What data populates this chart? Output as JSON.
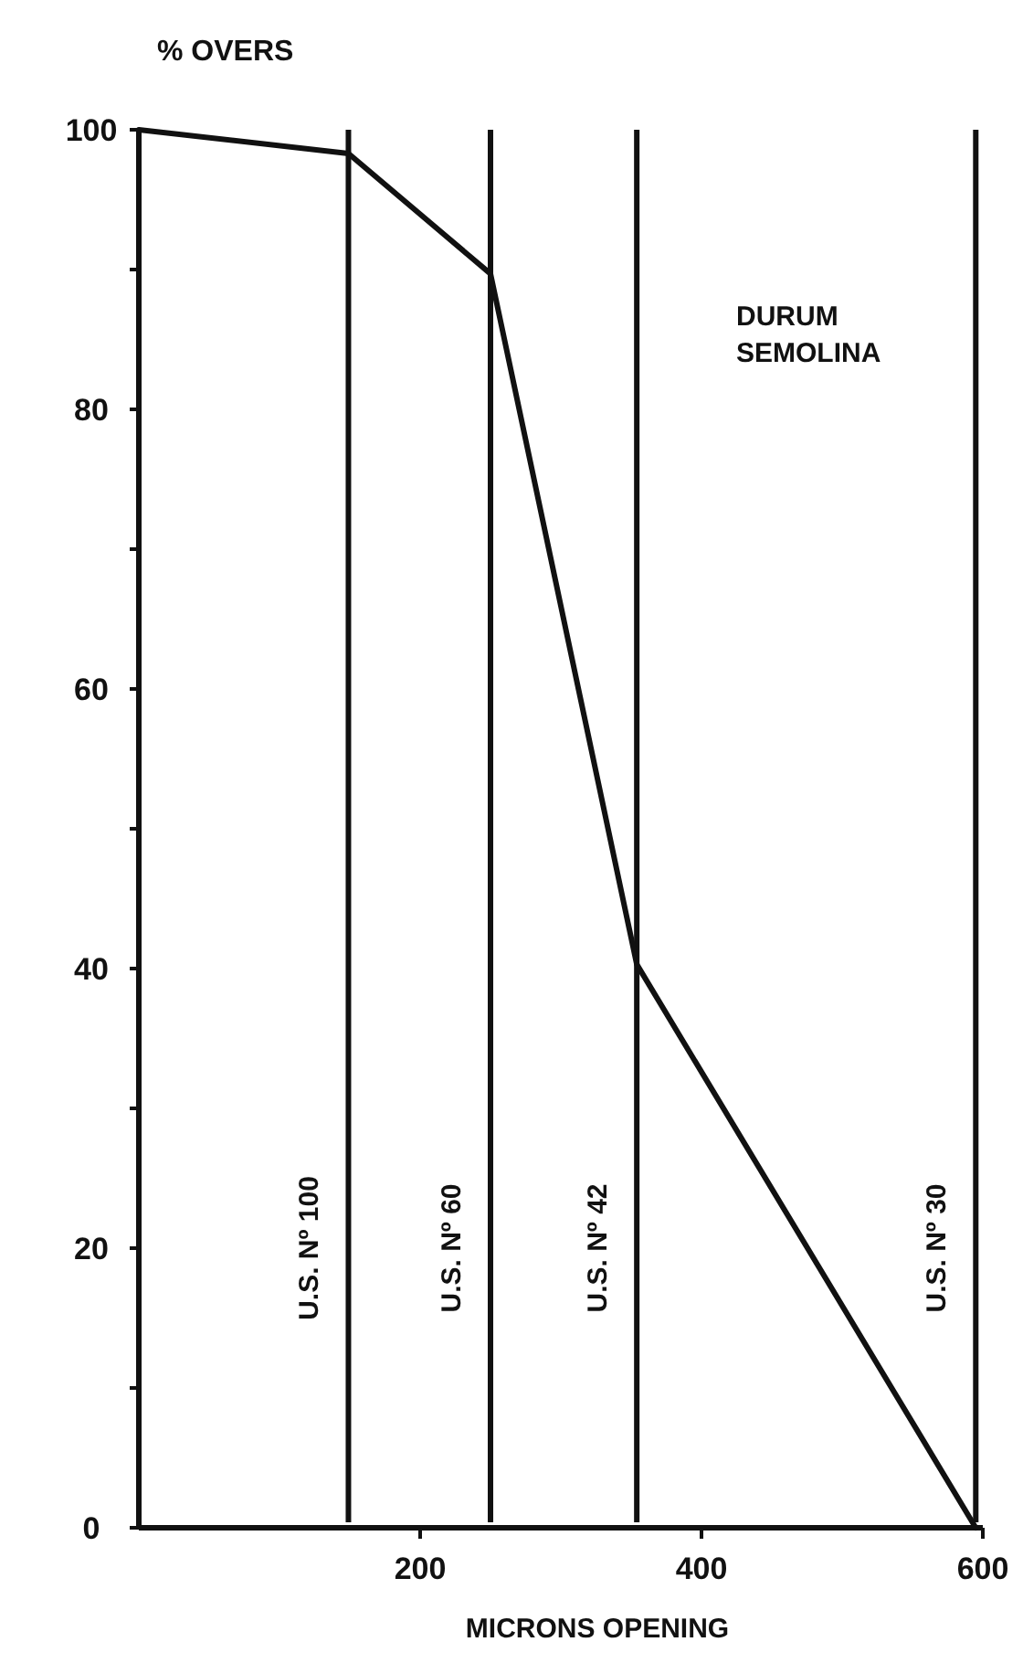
{
  "chart_data": {
    "type": "line",
    "ylabel": "% OVERS",
    "xlabel": "MICRONS OPENING",
    "x": [
      0,
      149,
      250,
      354,
      595
    ],
    "series": [
      {
        "color": "#111111",
        "values": [
          100,
          98.3,
          89.7,
          40.3,
          0
        ]
      }
    ],
    "xlim": [
      0,
      600
    ],
    "xticks": [
      {
        "value": 200,
        "label": "200"
      },
      {
        "value": 400,
        "label": "400"
      },
      {
        "value": 600,
        "label": "600"
      }
    ],
    "ylim": [
      0,
      100
    ],
    "yticks": [
      0,
      {
        "value": 10,
        "label": null
      },
      20,
      {
        "value": 30,
        "label": null
      },
      40,
      {
        "value": 50,
        "label": null
      },
      60,
      {
        "value": 70,
        "label": null
      },
      80,
      {
        "value": 90,
        "label": null
      },
      100
    ],
    "ref_lines": [
      {
        "axis": "x",
        "value": 149,
        "label": "U.S. Nº 100"
      },
      {
        "axis": "x",
        "value": 250,
        "label": "U.S. Nº 60"
      },
      {
        "axis": "x",
        "value": 354,
        "label": "U.S. Nº 42"
      },
      {
        "axis": "x",
        "value": 595,
        "label": "U.S. Nº 30"
      }
    ],
    "annotations": [
      "DURUM\nSEMOLINA"
    ],
    "grid": false,
    "marker": "none",
    "line_style": "solid"
  }
}
